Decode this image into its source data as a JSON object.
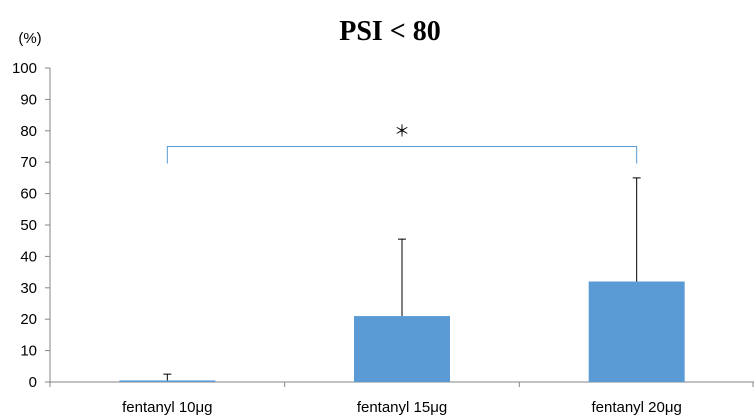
{
  "chart_data": {
    "type": "bar",
    "title": "PSI < 80",
    "ylabel": "(%)",
    "xlabel": "",
    "ylim": [
      0,
      100
    ],
    "yticks": [
      0,
      10,
      20,
      30,
      40,
      50,
      60,
      70,
      80,
      90,
      100
    ],
    "categories": [
      "fentanyl 10μg",
      "fentanyl 15μg",
      "fentanyl 20μg"
    ],
    "values": [
      0.5,
      21,
      32
    ],
    "error_upper": [
      2,
      24.5,
      33
    ],
    "bar_color": "#5b9bd5",
    "grid": false,
    "legend": "none",
    "significance": {
      "from": 0,
      "to": 2,
      "level": 75,
      "mark": "＊",
      "color": "#5b9bd5"
    }
  }
}
